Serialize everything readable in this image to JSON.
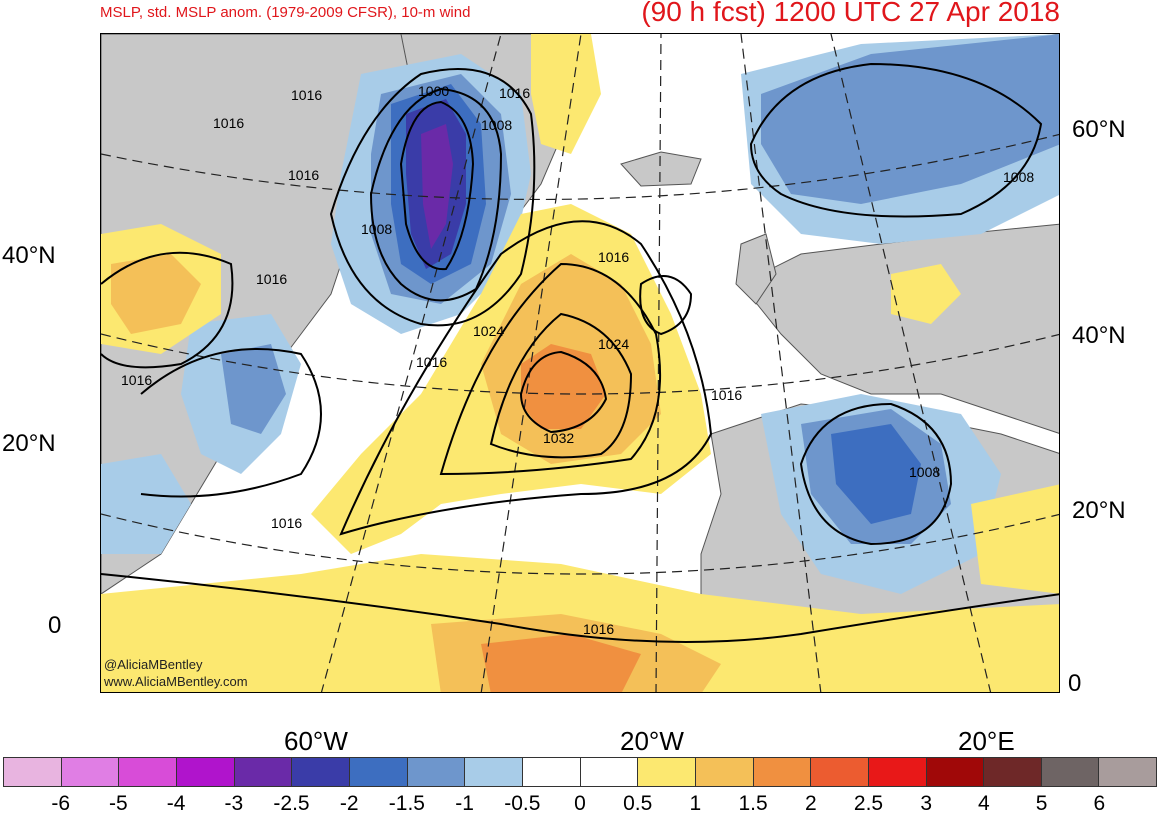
{
  "header": {
    "title_left": "MSLP, std. MSLP anom. (1979-2009 CFSR), 10-m wind",
    "title_right": "(90 h fcst) 1200 UTC 27 Apr 2018"
  },
  "axes": {
    "lat_left": [
      "40°N",
      "20°N",
      "0"
    ],
    "lat_right": [
      "60°N",
      "40°N",
      "20°N",
      "0"
    ],
    "lon_bottom": [
      "60°W",
      "20°W",
      "20°E"
    ]
  },
  "watermark": {
    "line1": "@AliciaMBentley",
    "line2": "www.AliciaMBentley.com"
  },
  "isobar_labels": [
    "1000",
    "1008",
    "1016",
    "1016",
    "1008",
    "1016",
    "1016",
    "1016",
    "1024",
    "1024",
    "1016",
    "1016",
    "1016",
    "1032",
    "1008",
    "1016",
    "1016",
    "1008",
    "1016"
  ],
  "colorbar": {
    "colors": [
      "#e8b4e0",
      "#e07ee4",
      "#d84cd8",
      "#b014cc",
      "#6a2aa8",
      "#3a3ca8",
      "#3d6ec0",
      "#6e96cc",
      "#a8cce8",
      "#ffffff",
      "#ffffff",
      "#fce870",
      "#f4c058",
      "#f09040",
      "#ec5c30",
      "#e81818",
      "#a00808",
      "#6e2828",
      "#6e6464",
      "#a89c9c"
    ],
    "labels": [
      "-6",
      "-5",
      "-4",
      "-3",
      "-2.5",
      "-2",
      "-1.5",
      "-1",
      "-0.5",
      "0",
      "0.5",
      "1",
      "1.5",
      "2",
      "2.5",
      "3",
      "4",
      "5",
      "6"
    ]
  },
  "colors": {
    "title": "#e0161b",
    "land": "#c8c8c8",
    "ocean": "#ffffff"
  }
}
